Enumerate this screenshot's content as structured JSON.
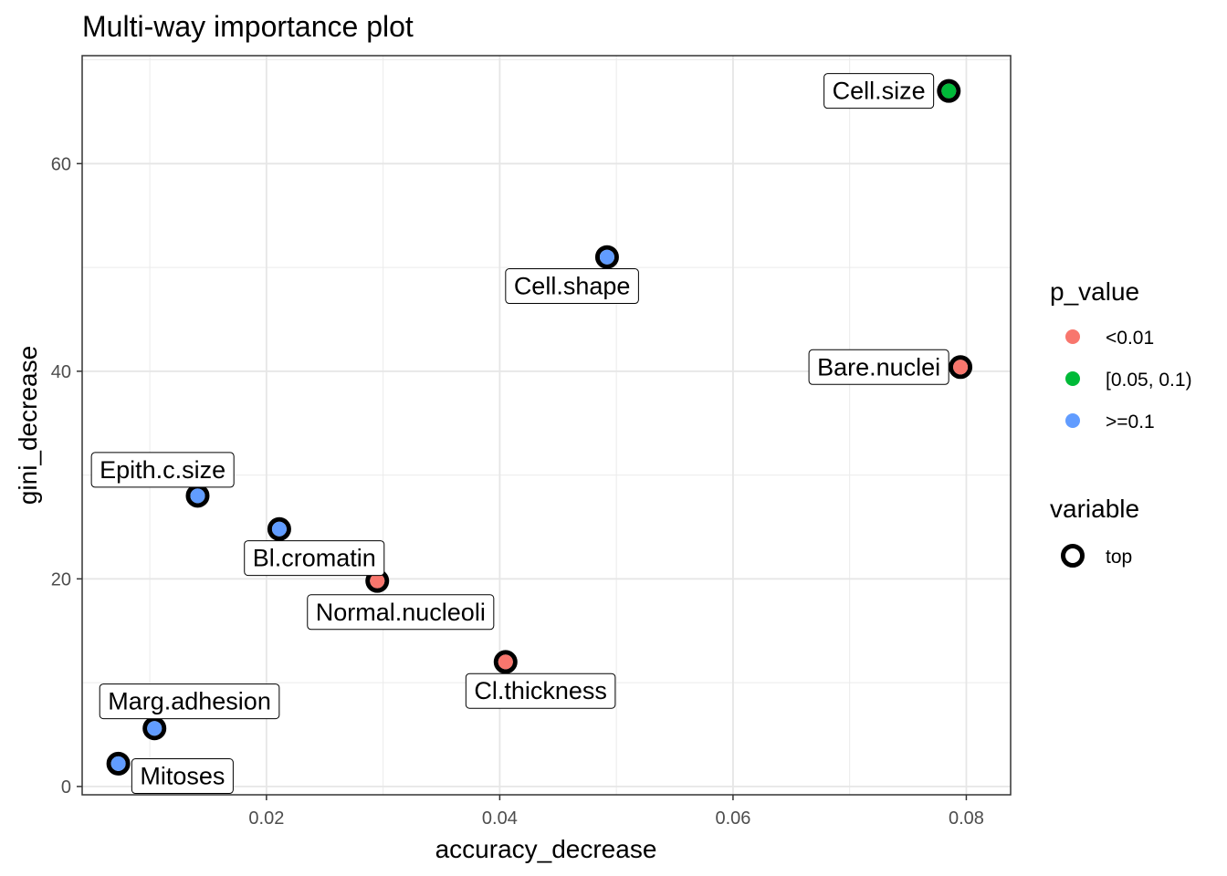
{
  "chart_data": {
    "type": "scatter",
    "title": "Multi-way importance plot",
    "xlabel": "accuracy_decrease",
    "ylabel": "gini_decrease",
    "xlim": [
      0.0042,
      0.0838
    ],
    "ylim": [
      -0.8,
      70.4
    ],
    "xticks": [
      {
        "value": 0.02,
        "label": "0.02"
      },
      {
        "value": 0.04,
        "label": "0.04"
      },
      {
        "value": 0.06,
        "label": "0.06"
      },
      {
        "value": 0.08,
        "label": "0.08"
      }
    ],
    "yticks": [
      {
        "value": 0,
        "label": "0"
      },
      {
        "value": 20,
        "label": "20"
      },
      {
        "value": 40,
        "label": "40"
      },
      {
        "value": 60,
        "label": "60"
      }
    ],
    "grid": true,
    "legend_placement": "right",
    "colors": {
      "<0.01": "#F8766D",
      "[0.05, 0.1)": "#00BA38",
      ">=0.1": "#619CFF"
    },
    "points": [
      {
        "variable": "Cell.size",
        "x": 0.0785,
        "y": 67.0,
        "p_value": "[0.05, 0.1)",
        "top": true,
        "label_dx": -0.006,
        "label_dy": 0.0
      },
      {
        "variable": "Cell.shape",
        "x": 0.0492,
        "y": 51.0,
        "p_value": ">=0.1",
        "top": true,
        "label_dx": -0.003,
        "label_dy": -2.8
      },
      {
        "variable": "Bare.nuclei",
        "x": 0.0795,
        "y": 40.4,
        "p_value": "<0.01",
        "top": true,
        "label_dx": -0.007,
        "label_dy": 0.0
      },
      {
        "variable": "Epith.c.size",
        "x": 0.0141,
        "y": 28.0,
        "p_value": ">=0.1",
        "top": true,
        "label_dx": -0.003,
        "label_dy": 2.5
      },
      {
        "variable": "Bl.cromatin",
        "x": 0.0211,
        "y": 24.8,
        "p_value": ">=0.1",
        "top": true,
        "label_dx": 0.003,
        "label_dy": -2.8
      },
      {
        "variable": "Normal.nucleoli",
        "x": 0.0295,
        "y": 19.8,
        "p_value": "<0.01",
        "top": true,
        "label_dx": 0.002,
        "label_dy": -3.0
      },
      {
        "variable": "Cl.thickness",
        "x": 0.0405,
        "y": 12.0,
        "p_value": "<0.01",
        "top": true,
        "label_dx": 0.003,
        "label_dy": -2.8
      },
      {
        "variable": "Marg.adhesion",
        "x": 0.0104,
        "y": 5.6,
        "p_value": ">=0.1",
        "top": true,
        "label_dx": 0.003,
        "label_dy": 2.6
      },
      {
        "variable": "Mitoses",
        "x": 0.0073,
        "y": 2.2,
        "p_value": ">=0.1",
        "top": true,
        "label_dx": 0.0055,
        "label_dy": -1.2
      }
    ],
    "legend": {
      "color_title": "p_value",
      "color_entries": [
        {
          "label": "<0.01",
          "key": "<0.01"
        },
        {
          "label": "[0.05, 0.1)",
          "key": "[0.05, 0.1)"
        },
        {
          "label": ">=0.1",
          "key": ">=0.1"
        }
      ],
      "shape_title": "variable",
      "shape_entries": [
        {
          "label": "top"
        }
      ]
    }
  }
}
